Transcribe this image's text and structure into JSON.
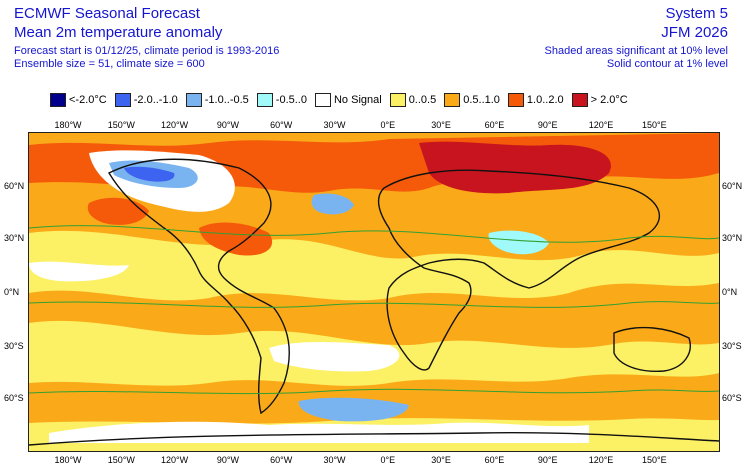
{
  "header": {
    "left_title": "ECMWF Seasonal Forecast",
    "left_subtitle": "Mean 2m temperature anomaly",
    "line1": "Forecast start is 01/12/25, climate period is 1993-2016",
    "line2": "Ensemble size = 51, climate size = 600",
    "right_title": "System 5",
    "right_subtitle": "JFM 2026",
    "right_line1": "Shaded areas significant at 10% level",
    "right_line2": "Solid contour at 1% level"
  },
  "legend": [
    {
      "label": "<-2.0°C",
      "color": "#00008c"
    },
    {
      "label": "-2.0..-1.0",
      "color": "#3c64f0"
    },
    {
      "label": "-1.0..-0.5",
      "color": "#7ab4f0"
    },
    {
      "label": "-0.5..0",
      "color": "#a0fafa"
    },
    {
      "label": "No Signal",
      "color": "#ffffff"
    },
    {
      "label": "0..0.5",
      "color": "#fcf064"
    },
    {
      "label": "0.5..1.0",
      "color": "#faaa19"
    },
    {
      "label": "1.0..2.0",
      "color": "#f55a0a"
    },
    {
      "label": "> 2.0°C",
      "color": "#c8141e"
    }
  ],
  "axes": {
    "lon_labels": [
      "180°W",
      "150°W",
      "120°W",
      "90°W",
      "60°W",
      "30°W",
      "0°E",
      "30°E",
      "60°E",
      "90°E",
      "120°E",
      "150°E"
    ],
    "lat_labels": [
      "60°N",
      "30°N",
      "0°N",
      "30°S",
      "60°S"
    ]
  }
}
